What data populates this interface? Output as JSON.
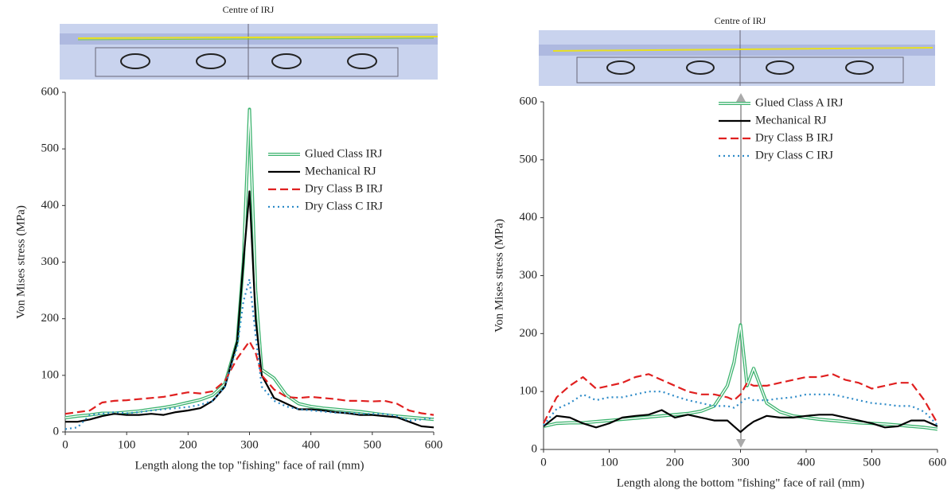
{
  "chart_data": [
    {
      "type": "line",
      "annotation": "Centre of IRJ",
      "xlabel": "Length along the top \"fishing\" face of rail (mm)",
      "ylabel": "Von Mises stress (MPa)",
      "xlim": [
        0,
        600
      ],
      "xticks": [
        0,
        100,
        200,
        300,
        400,
        500,
        600
      ],
      "ylim": [
        0,
        600
      ],
      "yticks": [
        0,
        100,
        200,
        300,
        400,
        500,
        600
      ],
      "legend": "center-right",
      "x": [
        0,
        20,
        40,
        60,
        80,
        100,
        120,
        140,
        160,
        180,
        200,
        220,
        240,
        260,
        280,
        290,
        300,
        310,
        320,
        340,
        360,
        380,
        400,
        420,
        440,
        460,
        480,
        500,
        520,
        540,
        560,
        580,
        600
      ],
      "series": [
        {
          "name": "Glued Class IRJ",
          "color": "#3cb36e",
          "style": "double",
          "values": [
            25,
            28,
            30,
            33,
            33,
            35,
            37,
            40,
            43,
            47,
            52,
            57,
            65,
            85,
            160,
            300,
            570,
            250,
            110,
            95,
            65,
            50,
            45,
            42,
            40,
            38,
            36,
            33,
            30,
            28,
            26,
            24,
            22
          ]
        },
        {
          "name": "Mechanical RJ",
          "color": "#000000",
          "style": "solid",
          "values": [
            18,
            18,
            22,
            28,
            32,
            30,
            30,
            32,
            30,
            35,
            38,
            42,
            55,
            80,
            160,
            300,
            425,
            200,
            100,
            60,
            50,
            40,
            40,
            38,
            35,
            33,
            30,
            30,
            28,
            26,
            18,
            10,
            8
          ]
        },
        {
          "name": "Dry Class B IRJ",
          "color": "#e02020",
          "style": "dashed",
          "values": [
            32,
            35,
            38,
            52,
            55,
            56,
            58,
            60,
            62,
            66,
            70,
            68,
            72,
            90,
            130,
            145,
            160,
            140,
            100,
            75,
            62,
            60,
            62,
            60,
            58,
            55,
            55,
            54,
            55,
            50,
            38,
            33,
            30
          ]
        },
        {
          "name": "Dry Class C IRJ",
          "color": "#2e8bc8",
          "style": "dotted",
          "values": [
            5,
            8,
            30,
            32,
            35,
            33,
            35,
            38,
            40,
            42,
            44,
            48,
            55,
            80,
            150,
            230,
            270,
            170,
            80,
            55,
            45,
            40,
            38,
            36,
            34,
            34,
            32,
            32,
            32,
            28,
            20,
            22,
            25
          ]
        }
      ]
    },
    {
      "type": "line",
      "annotation": "Centre of IRJ",
      "xlabel": "Length along the bottom \"fishing\" face of rail (mm)",
      "ylabel": "Von Mises stress (MPa)",
      "xlim": [
        0,
        600
      ],
      "xticks": [
        0,
        100,
        200,
        300,
        400,
        500,
        600
      ],
      "ylim": [
        0,
        600
      ],
      "yticks": [
        0,
        100,
        200,
        300,
        400,
        500,
        600
      ],
      "legend": "upper-right",
      "x": [
        0,
        20,
        40,
        60,
        80,
        100,
        120,
        140,
        160,
        180,
        200,
        220,
        240,
        260,
        280,
        290,
        300,
        310,
        320,
        340,
        360,
        380,
        400,
        420,
        440,
        460,
        480,
        500,
        520,
        540,
        560,
        580,
        600
      ],
      "series": [
        {
          "name": "Glued Class A IRJ",
          "color": "#3cb36e",
          "style": "double",
          "values": [
            40,
            45,
            46,
            46,
            48,
            50,
            52,
            54,
            56,
            58,
            60,
            62,
            66,
            75,
            110,
            150,
            215,
            110,
            140,
            80,
            65,
            58,
            55,
            52,
            50,
            48,
            46,
            45,
            44,
            42,
            40,
            38,
            35
          ]
        },
        {
          "name": "Mechanical RJ",
          "color": "#000000",
          "style": "solid",
          "values": [
            40,
            58,
            55,
            45,
            38,
            45,
            55,
            58,
            60,
            68,
            55,
            60,
            55,
            50,
            50,
            40,
            30,
            40,
            48,
            58,
            55,
            55,
            58,
            60,
            60,
            55,
            50,
            45,
            38,
            40,
            50,
            50,
            40
          ]
        },
        {
          "name": "Dry Class B IRJ",
          "color": "#e02020",
          "style": "dashed",
          "values": [
            45,
            90,
            110,
            125,
            105,
            110,
            115,
            125,
            130,
            120,
            110,
            100,
            95,
            95,
            90,
            85,
            95,
            115,
            110,
            110,
            115,
            120,
            125,
            125,
            130,
            120,
            115,
            105,
            110,
            115,
            115,
            85,
            45
          ]
        },
        {
          "name": "Dry Class C IRJ",
          "color": "#2e8bc8",
          "style": "dotted",
          "values": [
            42,
            70,
            80,
            95,
            85,
            90,
            90,
            95,
            100,
            100,
            92,
            85,
            80,
            75,
            75,
            72,
            80,
            90,
            85,
            85,
            88,
            90,
            95,
            95,
            95,
            90,
            85,
            80,
            78,
            75,
            75,
            65,
            42
          ]
        }
      ]
    }
  ]
}
